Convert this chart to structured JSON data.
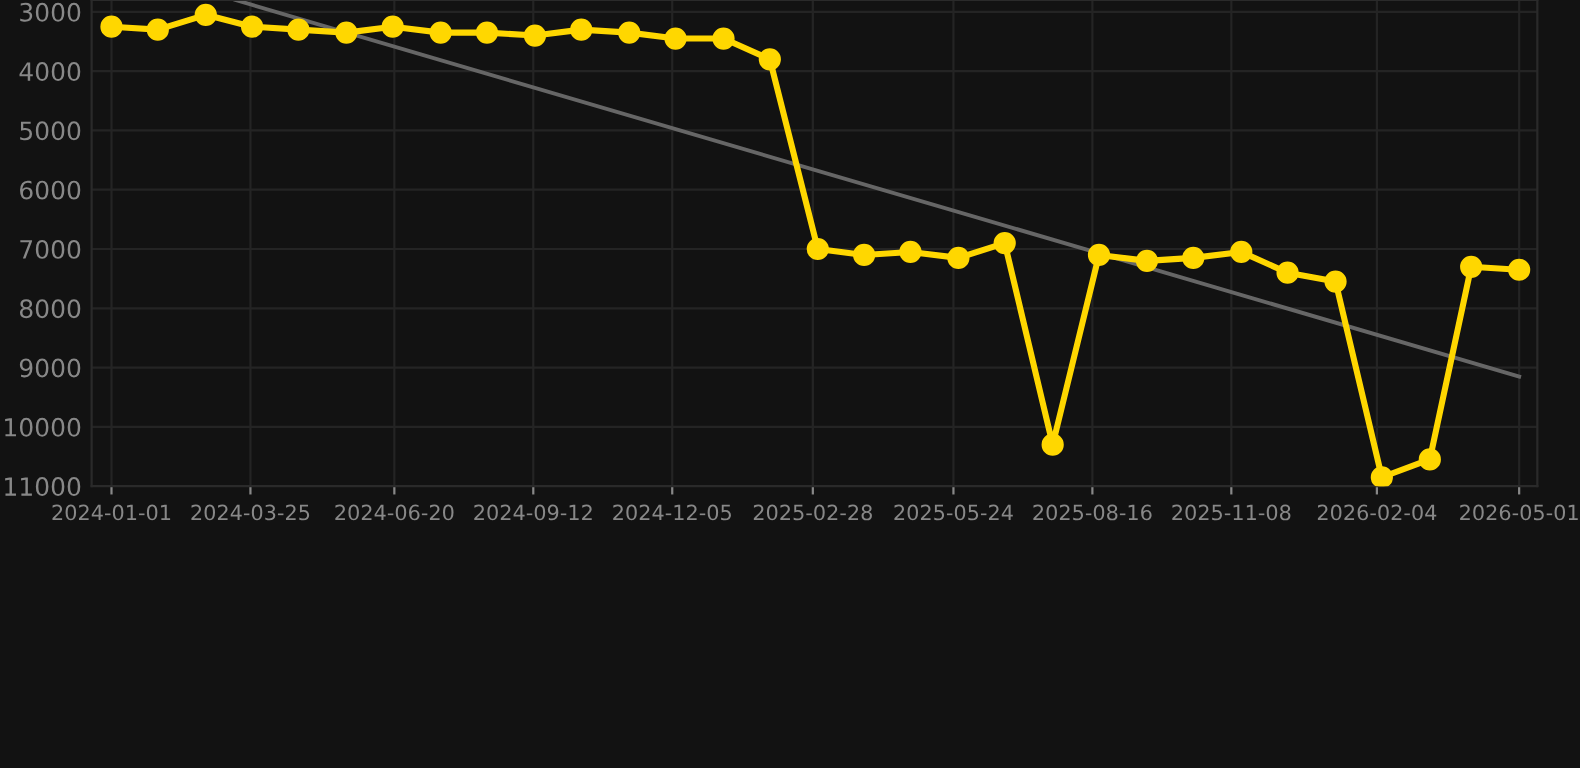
{
  "chart_data": {
    "type": "line",
    "x": [
      "2024-01-01",
      "2024-01-29",
      "2024-02-27",
      "2024-03-26",
      "2024-04-23",
      "2024-05-22",
      "2024-06-19",
      "2024-07-18",
      "2024-08-15",
      "2024-09-13",
      "2024-10-11",
      "2024-11-09",
      "2024-12-07",
      "2025-01-05",
      "2025-02-02",
      "2025-03-03",
      "2025-03-31",
      "2025-04-28",
      "2025-05-27",
      "2025-06-24",
      "2025-07-23",
      "2025-08-20",
      "2025-09-18",
      "2025-10-16",
      "2025-11-14",
      "2025-12-12",
      "2026-01-10",
      "2026-02-07",
      "2026-03-08",
      "2026-04-02",
      "2026-05-01"
    ],
    "series": [
      {
        "color": "#ffd700",
        "marker": "circle",
        "values": [
          3250,
          3300,
          3050,
          3250,
          3300,
          3350,
          3250,
          3350,
          3350,
          3400,
          3300,
          3350,
          3450,
          3450,
          3800,
          7000,
          7100,
          7050,
          7150,
          6900,
          10300,
          7100,
          7200,
          7150,
          7050,
          7400,
          7550,
          10850,
          10550,
          7300,
          7350
        ]
      },
      {
        "color": "#666666",
        "marker": "none",
        "x": [
          "2024-03-16",
          "2026-05-01"
        ],
        "values": [
          2800,
          9150
        ]
      }
    ],
    "xlim": [
      "2023-12-20",
      "2026-05-12"
    ],
    "xticks": [
      "2024-01-01",
      "2024-03-25",
      "2024-06-20",
      "2024-09-12",
      "2024-12-05",
      "2025-02-28",
      "2025-05-24",
      "2025-08-16",
      "2025-11-08",
      "2026-02-04",
      "2026-05-01"
    ],
    "ylim": [
      11000,
      2800
    ],
    "yticks": [
      3000,
      4000,
      5000,
      6000,
      7000,
      8000,
      9000,
      10000,
      11000
    ],
    "grid": true
  }
}
